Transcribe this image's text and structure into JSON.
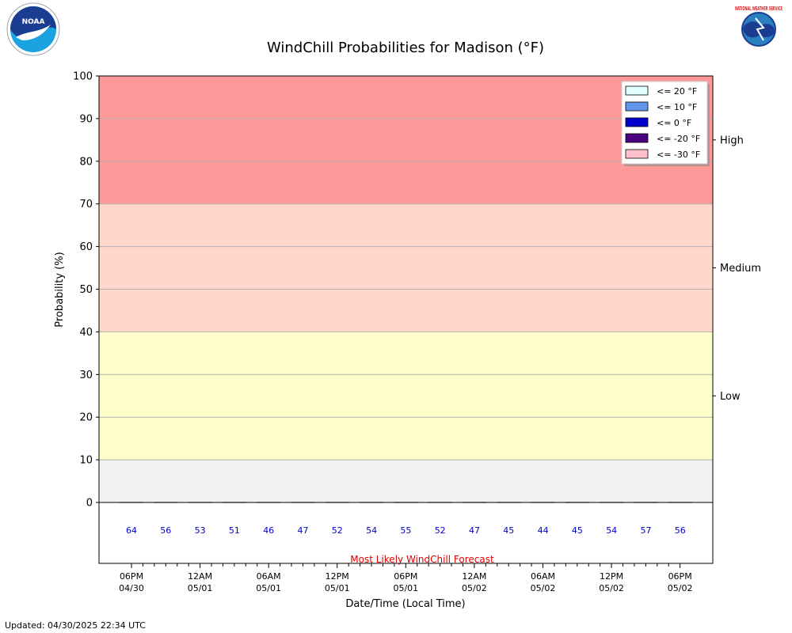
{
  "chart_data": {
    "type": "bar",
    "title": "WindChill Probabilities for Madison (°F)",
    "xlabel": "Date/Time (Local Time)",
    "ylabel": "Probability (%)",
    "ylim": [
      0,
      100
    ],
    "yticks": [
      0,
      10,
      20,
      30,
      40,
      50,
      60,
      70,
      80,
      90,
      100
    ],
    "grid": true,
    "legend_position": "top-right",
    "bands": [
      {
        "name": "High",
        "from": 70,
        "to": 100,
        "color": "#ff9999"
      },
      {
        "name": "Medium",
        "from": 40,
        "to": 70,
        "color": "#ffd8cc"
      },
      {
        "name": "Low",
        "from": 10,
        "to": 40,
        "color": "#ffffcc"
      },
      {
        "name": "",
        "from": 0,
        "to": 10,
        "color": "#f2f2f2"
      }
    ],
    "series": [
      {
        "name": "<= 20 °F",
        "color": "#e0ffff",
        "values": [
          0,
          0,
          0,
          0,
          0,
          0,
          0,
          0,
          0,
          0,
          0,
          0,
          0,
          0,
          0,
          0,
          0
        ]
      },
      {
        "name": "<= 10 °F",
        "color": "#6495ed",
        "values": [
          0,
          0,
          0,
          0,
          0,
          0,
          0,
          0,
          0,
          0,
          0,
          0,
          0,
          0,
          0,
          0,
          0
        ]
      },
      {
        "name": "<= 0 °F",
        "color": "#0000cd",
        "values": [
          0,
          0,
          0,
          0,
          0,
          0,
          0,
          0,
          0,
          0,
          0,
          0,
          0,
          0,
          0,
          0,
          0
        ]
      },
      {
        "name": "<= -20 °F",
        "color": "#4b0082",
        "values": [
          0,
          0,
          0,
          0,
          0,
          0,
          0,
          0,
          0,
          0,
          0,
          0,
          0,
          0,
          0,
          0,
          0
        ]
      },
      {
        "name": "<= -30 °F",
        "color": "#ffc0cb",
        "values": [
          0,
          0,
          0,
          0,
          0,
          0,
          0,
          0,
          0,
          0,
          0,
          0,
          0,
          0,
          0,
          0,
          0
        ]
      }
    ],
    "most_likely_label": "Most Likely WindChill Forecast",
    "most_likely_values": [
      64,
      56,
      53,
      51,
      46,
      47,
      52,
      54,
      55,
      52,
      47,
      45,
      44,
      45,
      54,
      57,
      56
    ],
    "x_ticks": [
      {
        "time": "06PM",
        "date": "04/30"
      },
      {
        "time": "12AM",
        "date": "05/01"
      },
      {
        "time": "06AM",
        "date": "05/01"
      },
      {
        "time": "12PM",
        "date": "05/01"
      },
      {
        "time": "06PM",
        "date": "05/01"
      },
      {
        "time": "12AM",
        "date": "05/02"
      },
      {
        "time": "06AM",
        "date": "05/02"
      },
      {
        "time": "12PM",
        "date": "05/02"
      },
      {
        "time": "06PM",
        "date": "05/02"
      }
    ]
  },
  "updated_text": "Updated: 04/30/2025 22:34 UTC",
  "logos": {
    "left": "NOAA",
    "right": "NATIONAL WEATHER SERVICE"
  }
}
